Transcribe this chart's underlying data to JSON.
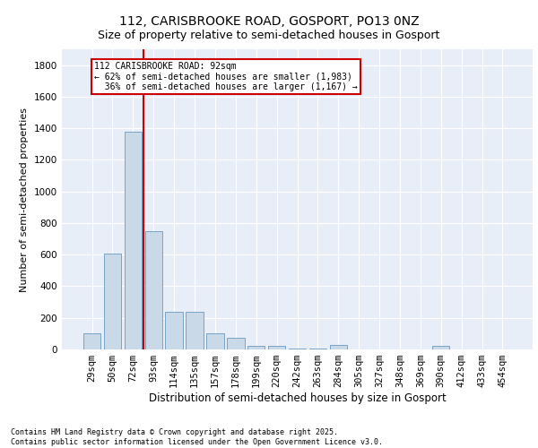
{
  "title1": "112, CARISBROOKE ROAD, GOSPORT, PO13 0NZ",
  "title2": "Size of property relative to semi-detached houses in Gosport",
  "xlabel": "Distribution of semi-detached houses by size in Gosport",
  "ylabel": "Number of semi-detached properties",
  "categories": [
    "29sqm",
    "50sqm",
    "72sqm",
    "93sqm",
    "114sqm",
    "135sqm",
    "157sqm",
    "178sqm",
    "199sqm",
    "220sqm",
    "242sqm",
    "263sqm",
    "284sqm",
    "305sqm",
    "327sqm",
    "348sqm",
    "369sqm",
    "390sqm",
    "412sqm",
    "433sqm",
    "454sqm"
  ],
  "values": [
    100,
    605,
    1380,
    750,
    240,
    240,
    100,
    75,
    25,
    20,
    8,
    5,
    30,
    0,
    0,
    0,
    0,
    20,
    0,
    0,
    0
  ],
  "bar_color": "#c9d9e8",
  "bar_edge_color": "#6a9abf",
  "vline_color": "#cc0000",
  "vline_index": 2.5,
  "annotation_line1": "112 CARISBROOKE ROAD: 92sqm",
  "annotation_line2": "← 62% of semi-detached houses are smaller (1,983)",
  "annotation_line3": "  36% of semi-detached houses are larger (1,167) →",
  "annotation_box_edge_color": "#cc0000",
  "ylim": [
    0,
    1900
  ],
  "yticks": [
    0,
    200,
    400,
    600,
    800,
    1000,
    1200,
    1400,
    1600,
    1800
  ],
  "background_color": "#e8eef8",
  "grid_color": "#ffffff",
  "footer_text": "Contains HM Land Registry data © Crown copyright and database right 2025.\nContains public sector information licensed under the Open Government Licence v3.0.",
  "title1_fontsize": 10,
  "title2_fontsize": 9,
  "xlabel_fontsize": 8.5,
  "ylabel_fontsize": 8,
  "tick_fontsize": 7.5,
  "annot_fontsize": 7,
  "footer_fontsize": 6
}
